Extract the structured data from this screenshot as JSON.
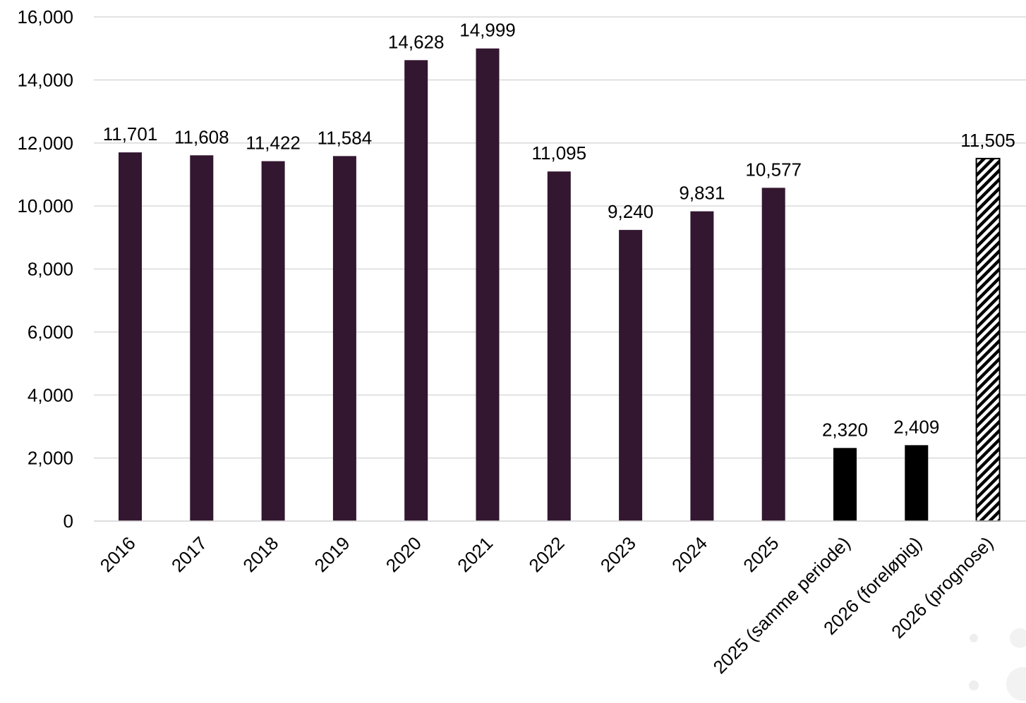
{
  "chart_data": {
    "type": "bar",
    "categories": [
      "2016",
      "2017",
      "2018",
      "2019",
      "2020",
      "2021",
      "2022",
      "2023",
      "2024",
      "2025",
      "2025 (samme periode)",
      "2026 (foreløpig)",
      "2026 (prognose)"
    ],
    "values": [
      11701,
      11608,
      11422,
      11584,
      14628,
      14999,
      11095,
      9240,
      9831,
      10577,
      2320,
      2409,
      11505
    ],
    "data_labels": [
      "11,701",
      "11,608",
      "11,422",
      "11,584",
      "14,628",
      "14,999",
      "11,095",
      "9,240",
      "9,831",
      "10,577",
      "2,320",
      "2,409",
      "11,505"
    ],
    "bar_styles": [
      "solid",
      "solid",
      "solid",
      "solid",
      "solid",
      "solid",
      "solid",
      "solid",
      "solid",
      "solid",
      "solid",
      "solid",
      "hatched"
    ],
    "bar_colors": [
      "#33162f",
      "#33162f",
      "#33162f",
      "#33162f",
      "#33162f",
      "#33162f",
      "#33162f",
      "#33162f",
      "#33162f",
      "#33162f",
      "#000000",
      "#000000",
      "#000000"
    ],
    "ylim": [
      0,
      16000
    ],
    "yticks": [
      0,
      2000,
      4000,
      6000,
      8000,
      10000,
      12000,
      14000,
      16000
    ],
    "ytick_labels": [
      "0",
      "2,000",
      "4,000",
      "6,000",
      "8,000",
      "10,000",
      "12,000",
      "14,000",
      "16,000"
    ],
    "grid": true,
    "gridline_color": "#d9d9d9",
    "title": "",
    "xlabel": "",
    "ylabel": ""
  }
}
